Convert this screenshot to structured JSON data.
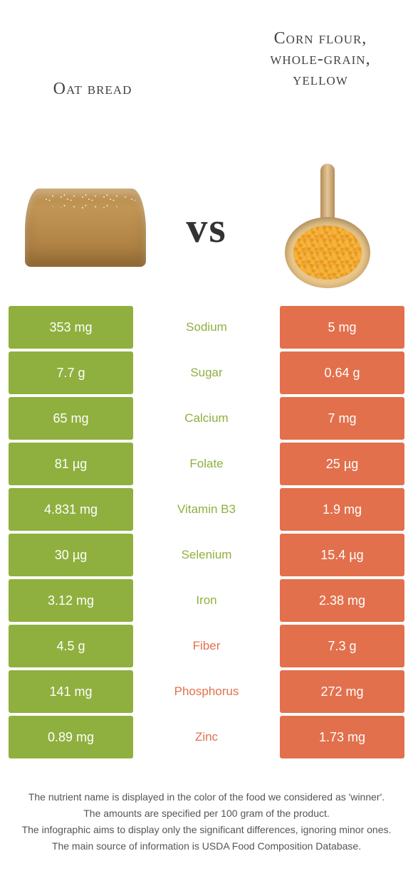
{
  "colors": {
    "green": "#8fb03e",
    "orange": "#e2704c",
    "white": "#ffffff"
  },
  "header": {
    "left_title": "Oat bread",
    "right_title": "Corn flour, whole-grain, yellow",
    "vs": "vs"
  },
  "rows": [
    {
      "nutrient": "Sodium",
      "left": "353 mg",
      "right": "5 mg",
      "winner": "left"
    },
    {
      "nutrient": "Sugar",
      "left": "7.7 g",
      "right": "0.64 g",
      "winner": "left"
    },
    {
      "nutrient": "Calcium",
      "left": "65 mg",
      "right": "7 mg",
      "winner": "left"
    },
    {
      "nutrient": "Folate",
      "left": "81 µg",
      "right": "25 µg",
      "winner": "left"
    },
    {
      "nutrient": "Vitamin B3",
      "left": "4.831 mg",
      "right": "1.9 mg",
      "winner": "left"
    },
    {
      "nutrient": "Selenium",
      "left": "30 µg",
      "right": "15.4 µg",
      "winner": "left"
    },
    {
      "nutrient": "Iron",
      "left": "3.12 mg",
      "right": "2.38 mg",
      "winner": "left"
    },
    {
      "nutrient": "Fiber",
      "left": "4.5 g",
      "right": "7.3 g",
      "winner": "right"
    },
    {
      "nutrient": "Phosphorus",
      "left": "141 mg",
      "right": "272 mg",
      "winner": "right"
    },
    {
      "nutrient": "Zinc",
      "left": "0.89 mg",
      "right": "1.73 mg",
      "winner": "right"
    }
  ],
  "footer": [
    "The nutrient name is displayed in the color of the food we considered as 'winner'.",
    "The amounts are specified per 100 gram of the product.",
    "The infographic aims to display only the significant differences, ignoring minor ones.",
    "The main source of information is USDA Food Composition Database."
  ]
}
